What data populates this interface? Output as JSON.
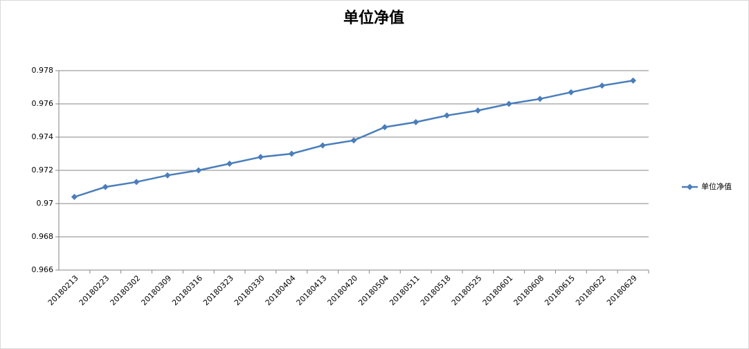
{
  "chart_data": {
    "type": "line",
    "title": "单位净值",
    "categories": [
      "20180213",
      "20180223",
      "20180302",
      "20180309",
      "20180316",
      "20180323",
      "20180330",
      "20180404",
      "20180413",
      "20180420",
      "20180504",
      "20180511",
      "20180518",
      "20180525",
      "20180601",
      "20180608",
      "20180615",
      "20180622",
      "20180629"
    ],
    "series": [
      {
        "name": "单位净值",
        "color": "#4a7ebb",
        "values": [
          0.9704,
          0.971,
          0.9713,
          0.9717,
          0.972,
          0.9724,
          0.9728,
          0.973,
          0.9735,
          0.9738,
          0.9746,
          0.9749,
          0.9753,
          0.9756,
          0.976,
          0.9763,
          0.9767,
          0.9771,
          0.9774
        ]
      }
    ],
    "ylim": [
      0.966,
      0.978
    ],
    "yticks": [
      0.966,
      0.968,
      0.97,
      0.972,
      0.974,
      0.976,
      0.978
    ],
    "grid": true,
    "legend": "right"
  }
}
